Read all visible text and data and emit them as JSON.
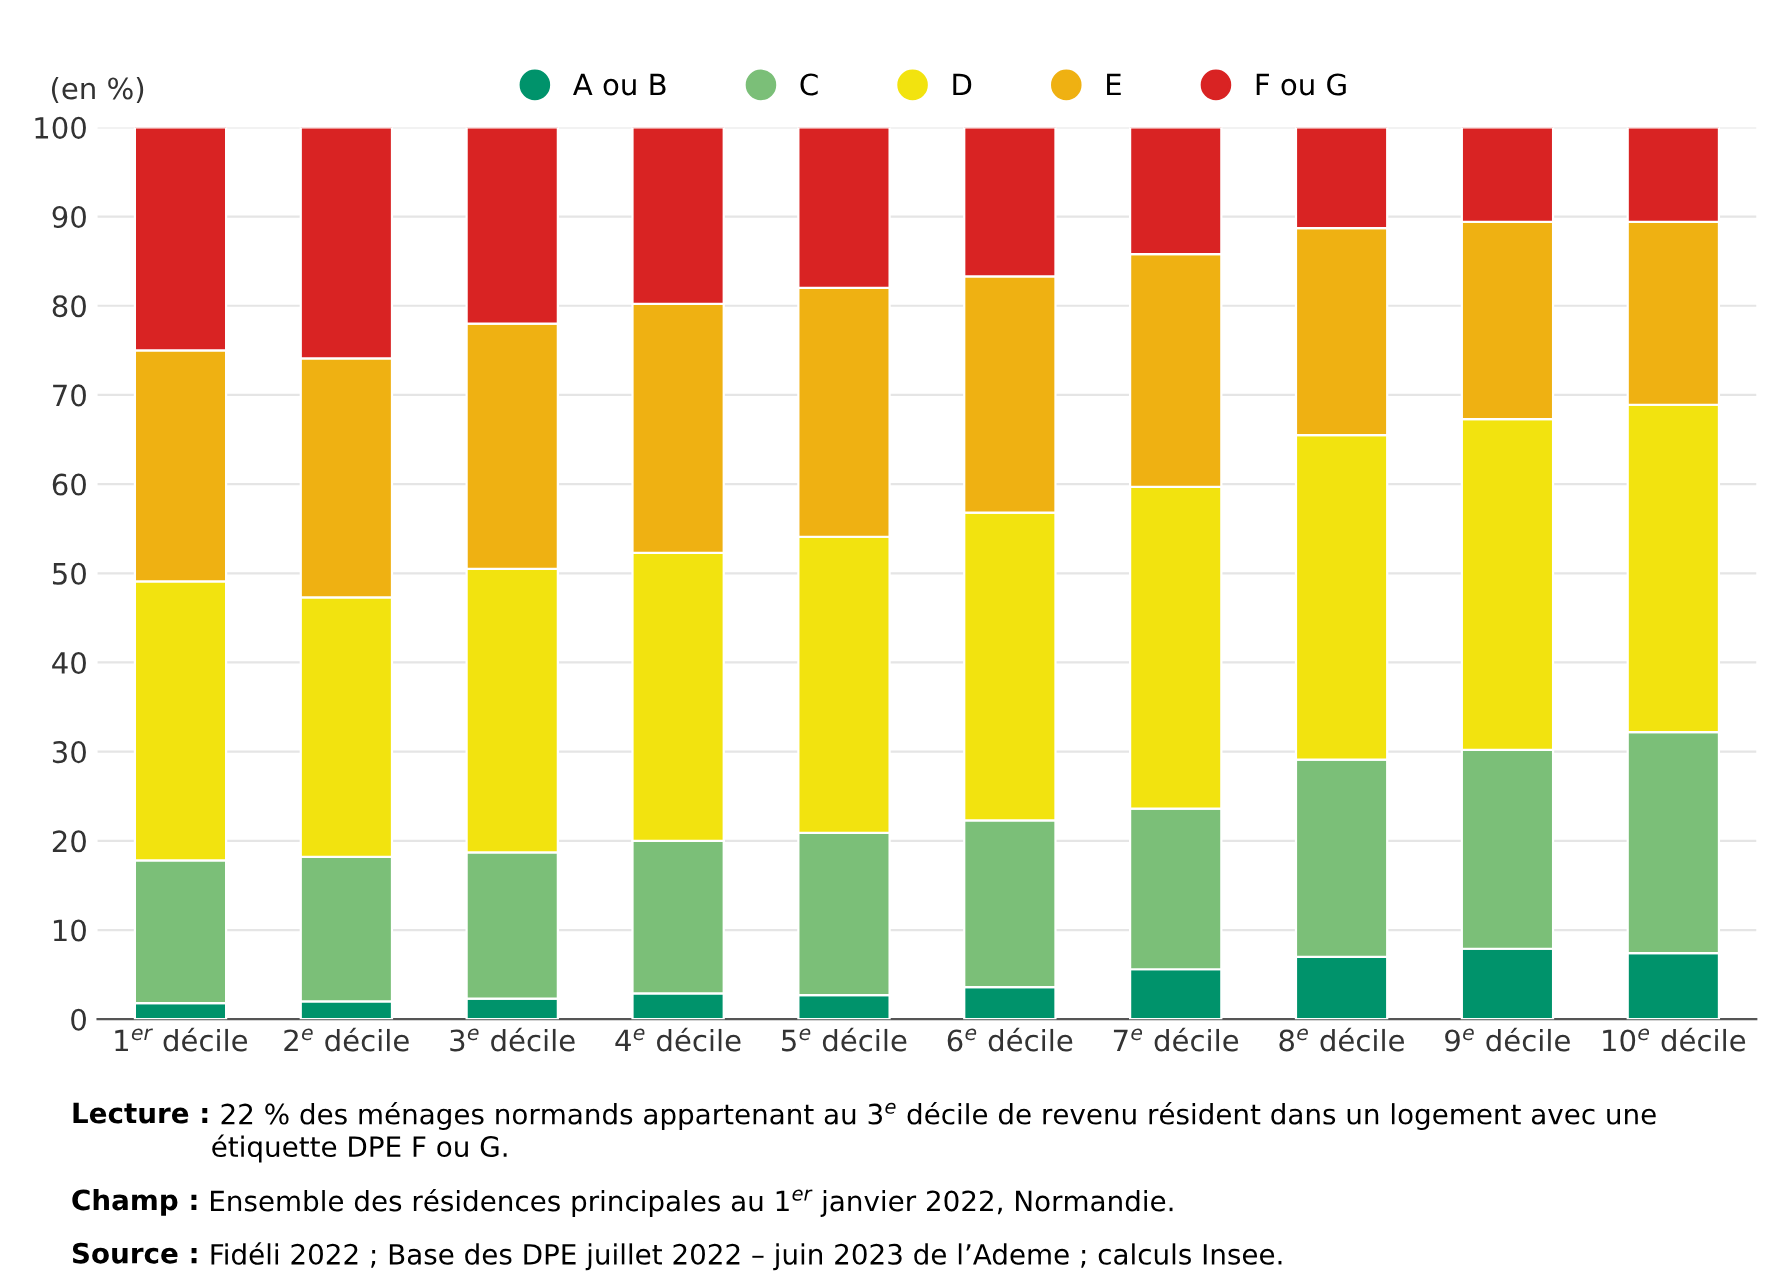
{
  "chart_data": {
    "type": "bar",
    "stacked": true,
    "ylabel": "(en %)",
    "categories": [
      "1$^{er}$ décile",
      "2$^{e}$ décile",
      "3$^{e}$ décile",
      "4$^{e}$ décile",
      "5$^{e}$ décile",
      "6$^{e}$ décile",
      "7$^{e}$ décile",
      "8$^{e}$ décile",
      "9$^{e}$ décile",
      "10$^{e}$ décile"
    ],
    "series": [
      {
        "name": "A ou B",
        "color": "#00936b",
        "values": [
          1.8,
          2.0,
          2.3,
          2.9,
          2.7,
          3.6,
          5.6,
          7.0,
          7.9,
          7.4
        ]
      },
      {
        "name": "C",
        "color": "#7bbf78",
        "values": [
          16.0,
          16.2,
          16.4,
          17.1,
          18.2,
          18.7,
          18.0,
          22.1,
          22.3,
          24.8
        ]
      },
      {
        "name": "D",
        "color": "#f2e30f",
        "values": [
          31.3,
          29.1,
          31.8,
          32.3,
          33.2,
          34.5,
          36.1,
          36.4,
          37.1,
          36.7
        ]
      },
      {
        "name": "E",
        "color": "#efb112",
        "values": [
          25.9,
          26.8,
          27.5,
          27.9,
          27.9,
          26.5,
          26.1,
          23.2,
          22.1,
          20.5
        ]
      },
      {
        "name": "F ou G",
        "color": "#d92323",
        "values": [
          25.0,
          25.9,
          22.0,
          19.8,
          18.0,
          16.7,
          14.2,
          11.3,
          10.6,
          10.6
        ]
      }
    ],
    "ylim": [
      0,
      100
    ],
    "yticks": [
      0,
      10,
      20,
      30,
      40,
      50,
      60,
      70,
      80,
      90,
      100
    ],
    "grid": "y",
    "legend": "top",
    "annotations": [
      "Lecture : 22 % des ménages normands appartenant au 3$^{e}$ décile de revenu résident dans un logement avec une étiquette DPE F ou G.",
      "Champ : Ensemble des résidences principales au 1$^{er}$ janvier 2022, Normandie.",
      "Source : Fidéli 2022 ; Base des DPE juillet 2022 – juin 2023 de l’Ademe ; calculs Insee."
    ]
  }
}
